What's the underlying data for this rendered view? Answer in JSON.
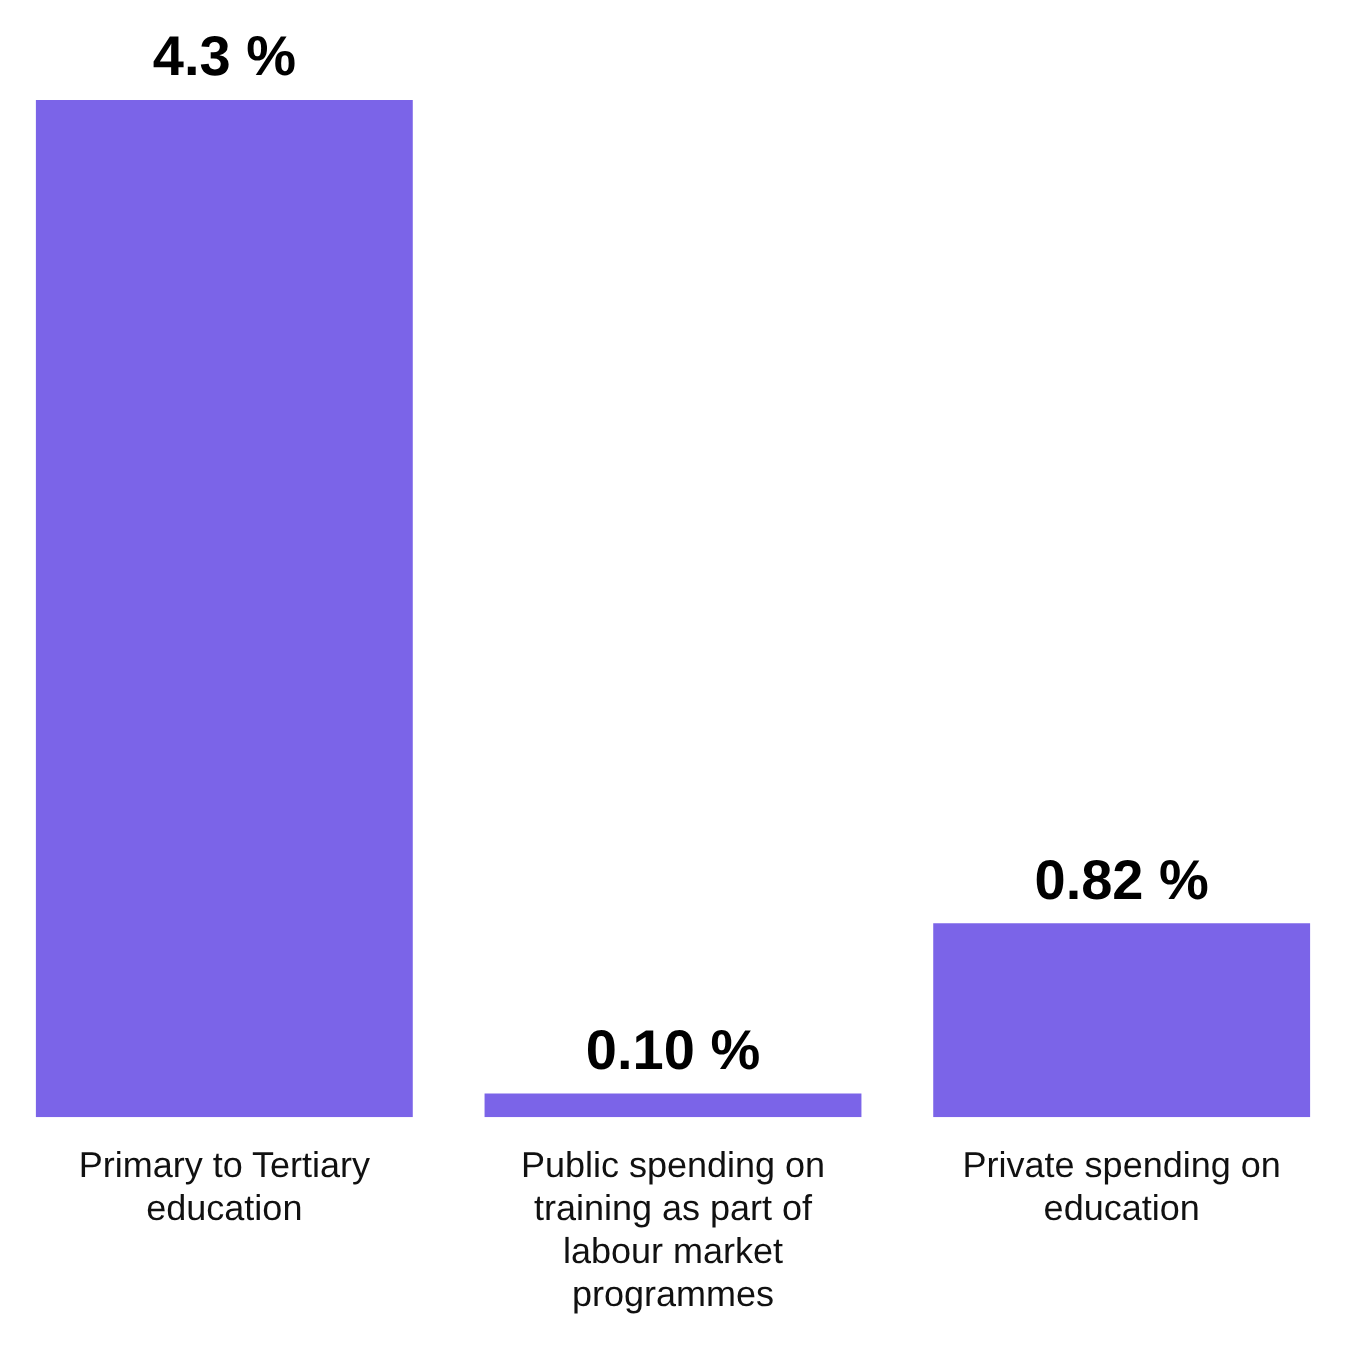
{
  "chart_data": {
    "type": "bar",
    "categories": [
      "Primary to Tertiary education",
      "Public spending on training as part of labour market programmes",
      "Private spending on education"
    ],
    "values": [
      4.3,
      0.1,
      0.82
    ],
    "color": "#7b64e8",
    "value_labels": [
      "4.3 %",
      "0.10 %",
      "0.82 %"
    ],
    "grid": false,
    "legend": false
  }
}
